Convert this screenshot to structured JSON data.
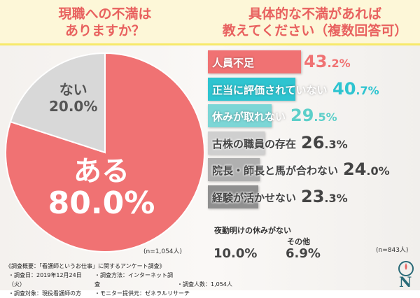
{
  "header": {
    "left_title_1": "現職への不満は",
    "left_title_2": "ありますか？",
    "right_title_1": "具体的な不満があれば",
    "right_title_2": "教えてください（複数回答可）"
  },
  "chart_data": [
    {
      "type": "pie",
      "title": "現職への不満はありますか？",
      "slices": [
        {
          "label": "ある",
          "value": 80.0,
          "display": "80.0%",
          "color": "#f07273"
        },
        {
          "label": "ない",
          "value": 20.0,
          "display": "20.0%",
          "color": "#d8d8d8"
        }
      ],
      "note": "(n=1,054人)"
    },
    {
      "type": "bar",
      "title": "具体的な不満があれば教えてください（複数回答可）",
      "categories": [
        "人員不足",
        "正当に評価されていない",
        "休みが取れない",
        "古株の職員の存在",
        "院長・師長と馬が合わない",
        "経験が活かせない",
        "夜勤明けの休みがない",
        "その他"
      ],
      "values": [
        43.2,
        40.7,
        29.5,
        26.3,
        24.0,
        23.3,
        10.0,
        6.9
      ],
      "colors": [
        "#f07273",
        "#2ec4d0",
        "#7cd6d6",
        "#cfcfcf",
        "#b0b0b0",
        "#8f8f8f"
      ],
      "text_colors": [
        "#f07273",
        "#2ec4d0",
        "#5ccfc9",
        "#444",
        "#444",
        "#444"
      ],
      "note": "(n=843人)"
    }
  ],
  "footer": {
    "line1": "《調査概要：「看護師というお仕事」に関するアンケート調査》",
    "date": "・調査日：2019年12月24日（火）",
    "method": "・調査方法：インターネット調査",
    "count": "・調査人数：1,054人",
    "target": "・調査対象：現役看護師の方",
    "provider": "・モニター提供元：ゼネラルリサーチ"
  }
}
